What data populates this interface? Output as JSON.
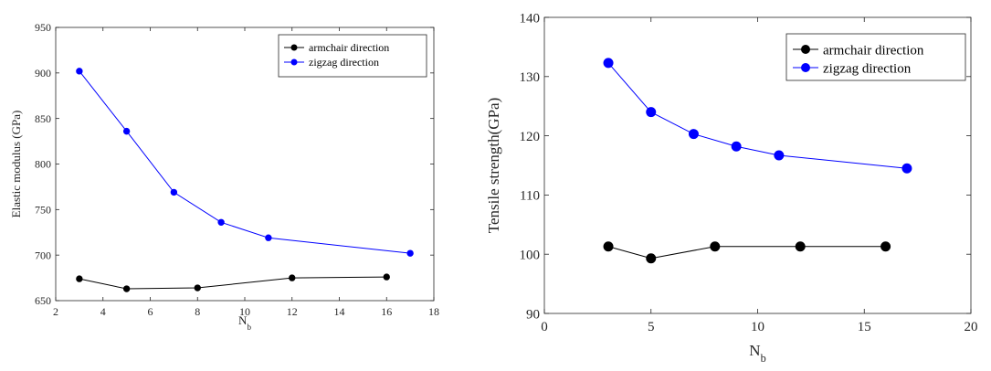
{
  "chart_data": [
    {
      "type": "line",
      "title": "",
      "xlabel": "N",
      "xlabel_sub": "b",
      "ylabel": "Elastic modulus (GPa)",
      "xlim": [
        2,
        18
      ],
      "ylim": [
        650,
        950
      ],
      "xticks": [
        2,
        4,
        6,
        8,
        10,
        12,
        14,
        16,
        18
      ],
      "yticks": [
        650,
        700,
        750,
        800,
        850,
        900,
        950
      ],
      "grid": false,
      "legend_position": "top-right",
      "series": [
        {
          "name": "armchair direction",
          "color": "#000000",
          "x": [
            3,
            5,
            8,
            12,
            16
          ],
          "y": [
            674,
            663,
            664,
            675,
            676
          ]
        },
        {
          "name": "zigzag direction",
          "color": "#0000ff",
          "x": [
            3,
            5,
            7,
            9,
            11,
            17
          ],
          "y": [
            902,
            836,
            769,
            736,
            719,
            702
          ]
        }
      ]
    },
    {
      "type": "line",
      "title": "",
      "xlabel": "N",
      "xlabel_sub": "b",
      "ylabel": "Tensile strength(GPa)",
      "xlim": [
        0,
        20
      ],
      "ylim": [
        90,
        140
      ],
      "xticks": [
        0,
        5,
        10,
        15,
        20
      ],
      "yticks": [
        90,
        100,
        110,
        120,
        130,
        140
      ],
      "grid": false,
      "legend_position": "top-right",
      "series": [
        {
          "name": "armchair direction",
          "color": "#000000",
          "x": [
            3,
            5,
            8,
            12,
            16
          ],
          "y": [
            101.3,
            99.3,
            101.3,
            101.3,
            101.3
          ]
        },
        {
          "name": "zigzag direction",
          "color": "#0000ff",
          "x": [
            3,
            5,
            7,
            9,
            11,
            17
          ],
          "y": [
            132.3,
            124.0,
            120.3,
            118.2,
            116.7,
            114.5
          ]
        }
      ]
    }
  ]
}
